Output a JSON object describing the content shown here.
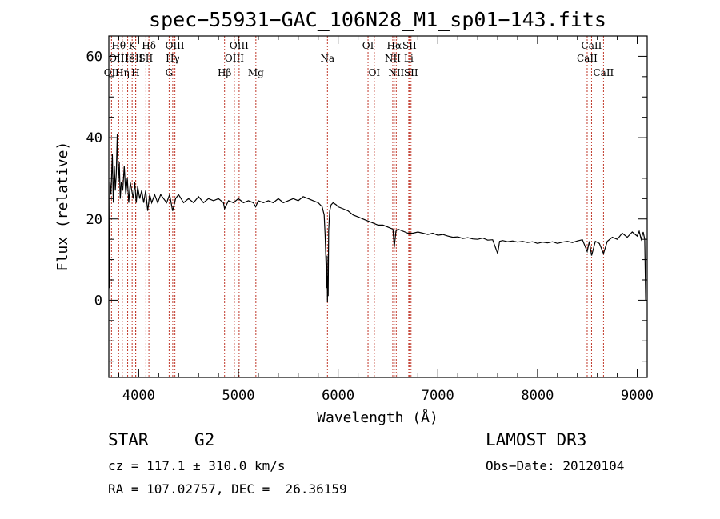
{
  "chart_data": {
    "type": "line",
    "title": "spec−55931−GAC_106N28_M1_sp01−143.fits",
    "xlabel": "Wavelength (Å)",
    "ylabel": "Flux (relative)",
    "xlim": [
      3700,
      9100
    ],
    "ylim": [
      -19,
      65
    ],
    "xticks": [
      4000,
      5000,
      6000,
      7000,
      8000,
      9000
    ],
    "yticks": [
      0,
      20,
      40,
      60
    ],
    "series": [
      {
        "name": "flux",
        "color": "#000000",
        "points": [
          [
            3705,
            3
          ],
          [
            3712,
            29
          ],
          [
            3722,
            26
          ],
          [
            3735,
            36
          ],
          [
            3745,
            24
          ],
          [
            3755,
            33
          ],
          [
            3765,
            27
          ],
          [
            3775,
            31
          ],
          [
            3785,
            41
          ],
          [
            3795,
            29
          ],
          [
            3805,
            34
          ],
          [
            3815,
            25
          ],
          [
            3825,
            29
          ],
          [
            3840,
            27
          ],
          [
            3855,
            33
          ],
          [
            3870,
            26
          ],
          [
            3885,
            30
          ],
          [
            3900,
            24
          ],
          [
            3915,
            29
          ],
          [
            3930,
            27
          ],
          [
            3945,
            25
          ],
          [
            3960,
            29
          ],
          [
            3975,
            24
          ],
          [
            3990,
            28
          ],
          [
            4010,
            25
          ],
          [
            4030,
            27
          ],
          [
            4050,
            24
          ],
          [
            4070,
            27
          ],
          [
            4090,
            22
          ],
          [
            4110,
            26
          ],
          [
            4130,
            24
          ],
          [
            4160,
            26
          ],
          [
            4190,
            24
          ],
          [
            4220,
            26
          ],
          [
            4250,
            25
          ],
          [
            4280,
            24
          ],
          [
            4310,
            26
          ],
          [
            4340,
            22
          ],
          [
            4370,
            25
          ],
          [
            4400,
            26
          ],
          [
            4450,
            24
          ],
          [
            4500,
            25
          ],
          [
            4550,
            24
          ],
          [
            4600,
            25.5
          ],
          [
            4650,
            24
          ],
          [
            4700,
            25
          ],
          [
            4750,
            24.5
          ],
          [
            4800,
            25
          ],
          [
            4850,
            24
          ],
          [
            4861,
            22.5
          ],
          [
            4900,
            24.5
          ],
          [
            4950,
            24
          ],
          [
            5000,
            25
          ],
          [
            5050,
            24
          ],
          [
            5100,
            24.5
          ],
          [
            5150,
            24
          ],
          [
            5172,
            23
          ],
          [
            5200,
            24.5
          ],
          [
            5250,
            24
          ],
          [
            5300,
            24.5
          ],
          [
            5350,
            24
          ],
          [
            5400,
            25
          ],
          [
            5450,
            24
          ],
          [
            5500,
            24.5
          ],
          [
            5550,
            25
          ],
          [
            5600,
            24.5
          ],
          [
            5650,
            25.5
          ],
          [
            5700,
            25
          ],
          [
            5750,
            24.5
          ],
          [
            5800,
            24
          ],
          [
            5840,
            23
          ],
          [
            5860,
            21
          ],
          [
            5870,
            16
          ],
          [
            5880,
            8
          ],
          [
            5886,
            3
          ],
          [
            5890,
            11
          ],
          [
            5893,
            -0.5
          ],
          [
            5896,
            6
          ],
          [
            5900,
            1
          ],
          [
            5905,
            17
          ],
          [
            5915,
            22
          ],
          [
            5930,
            23.5
          ],
          [
            5950,
            24
          ],
          [
            5980,
            23.5
          ],
          [
            6000,
            23
          ],
          [
            6050,
            22.5
          ],
          [
            6100,
            22
          ],
          [
            6150,
            21
          ],
          [
            6200,
            20.5
          ],
          [
            6250,
            20
          ],
          [
            6300,
            19.5
          ],
          [
            6350,
            19
          ],
          [
            6400,
            18.5
          ],
          [
            6450,
            18.5
          ],
          [
            6500,
            18
          ],
          [
            6550,
            17.5
          ],
          [
            6563,
            13
          ],
          [
            6580,
            17
          ],
          [
            6600,
            17.5
          ],
          [
            6650,
            17
          ],
          [
            6700,
            16.5
          ],
          [
            6750,
            16.5
          ],
          [
            6800,
            16.8
          ],
          [
            6850,
            16.5
          ],
          [
            6900,
            16.2
          ],
          [
            6950,
            16.5
          ],
          [
            7000,
            16
          ],
          [
            7050,
            16.2
          ],
          [
            7100,
            15.8
          ],
          [
            7150,
            15.5
          ],
          [
            7200,
            15.6
          ],
          [
            7250,
            15.2
          ],
          [
            7300,
            15.4
          ],
          [
            7350,
            15.1
          ],
          [
            7400,
            15
          ],
          [
            7450,
            15.3
          ],
          [
            7500,
            14.8
          ],
          [
            7550,
            14.9
          ],
          [
            7600,
            11.5
          ],
          [
            7620,
            14.5
          ],
          [
            7650,
            14.7
          ],
          [
            7700,
            14.4
          ],
          [
            7750,
            14.6
          ],
          [
            7800,
            14.3
          ],
          [
            7850,
            14.5
          ],
          [
            7900,
            14.2
          ],
          [
            7950,
            14.4
          ],
          [
            8000,
            14
          ],
          [
            8050,
            14.3
          ],
          [
            8100,
            14.1
          ],
          [
            8150,
            14.4
          ],
          [
            8200,
            14
          ],
          [
            8250,
            14.3
          ],
          [
            8300,
            14.5
          ],
          [
            8350,
            14.2
          ],
          [
            8400,
            14.6
          ],
          [
            8450,
            14.9
          ],
          [
            8498,
            12
          ],
          [
            8520,
            14.5
          ],
          [
            8542,
            11
          ],
          [
            8580,
            14.5
          ],
          [
            8620,
            14
          ],
          [
            8662,
            11.5
          ],
          [
            8700,
            14.5
          ],
          [
            8750,
            15.5
          ],
          [
            8800,
            15
          ],
          [
            8850,
            16.5
          ],
          [
            8900,
            15.5
          ],
          [
            8950,
            16.8
          ],
          [
            9000,
            15.8
          ],
          [
            9020,
            17
          ],
          [
            9040,
            15
          ],
          [
            9060,
            16.8
          ],
          [
            9075,
            15
          ],
          [
            9085,
            0
          ]
        ]
      }
    ],
    "lines": [
      {
        "label": "OII",
        "x": 3727,
        "row": 2
      },
      {
        "label": "Hθ",
        "x": 3798,
        "row": 0
      },
      {
        "label": "OIII",
        "x": 3798,
        "row": 1
      },
      {
        "label": "Hη",
        "x": 3835,
        "row": 2
      },
      {
        "label": "He",
        "x": 3889,
        "row": 1
      },
      {
        "label": "K",
        "x": 3934,
        "row": 0
      },
      {
        "label": "SII",
        "x": 3970,
        "row": 1
      },
      {
        "label": "H",
        "x": 3969,
        "row": 2
      },
      {
        "label": "Hδ",
        "x": 4102,
        "row": 0
      },
      {
        "label": "SII",
        "x": 4072,
        "row": 1
      },
      {
        "label": "OIII",
        "x": 4363,
        "row": 0
      },
      {
        "label": "Hγ",
        "x": 4341,
        "row": 1
      },
      {
        "label": "G",
        "x": 4305,
        "row": 2
      },
      {
        "label": "OIII",
        "x": 5007,
        "row": 0
      },
      {
        "label": "OIII",
        "x": 4959,
        "row": 1
      },
      {
        "label": "Hβ",
        "x": 4861,
        "row": 2
      },
      {
        "label": "Mg",
        "x": 5175,
        "row": 2
      },
      {
        "label": "Na",
        "x": 5893,
        "row": 1
      },
      {
        "label": "OI",
        "x": 6300,
        "row": 0
      },
      {
        "label": "OI",
        "x": 6363,
        "row": 2
      },
      {
        "label": "Hα",
        "x": 6563,
        "row": 0
      },
      {
        "label": "NII",
        "x": 6548,
        "row": 1
      },
      {
        "label": "NII",
        "x": 6583,
        "row": 2
      },
      {
        "label": "SII",
        "x": 6716,
        "row": 0
      },
      {
        "label": "Li",
        "x": 6708,
        "row": 1
      },
      {
        "label": "SII",
        "x": 6731,
        "row": 2
      },
      {
        "label": "CaII",
        "x": 8542,
        "row": 0
      },
      {
        "label": "CaII",
        "x": 8498,
        "row": 1
      },
      {
        "label": "CaII",
        "x": 8662,
        "row": 2
      }
    ]
  },
  "info": {
    "object_class": "STAR",
    "subclass": "G2",
    "survey": "LAMOST DR3",
    "cz": "cz = 117.1 ± 310.0 km/s",
    "obs_date": "Obs−Date: 20120104",
    "coords": "RA = 107.02757, DEC =  26.36159"
  }
}
